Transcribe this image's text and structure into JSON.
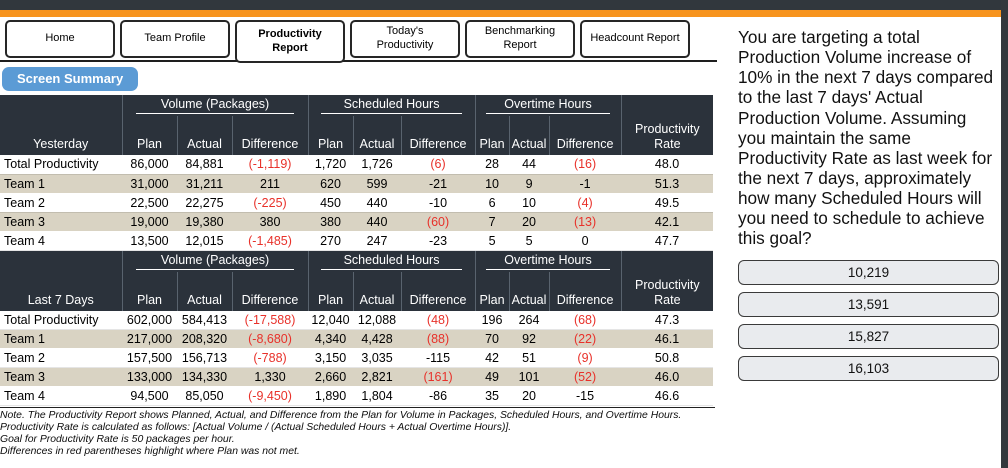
{
  "tabs": [
    {
      "label": "Home",
      "active": false
    },
    {
      "label": "Team Profile",
      "active": false
    },
    {
      "label": "Productivity Report",
      "active": true
    },
    {
      "label": "Today's Productivity",
      "active": false
    },
    {
      "label": "Benchmarking Report",
      "active": false
    },
    {
      "label": "Headcount Report",
      "active": false
    }
  ],
  "screen_summary_label": "Screen Summary",
  "tables": [
    {
      "period_label": "Yesterday",
      "groups": [
        "Volume (Packages)",
        "Scheduled Hours",
        "Overtime Hours"
      ],
      "sub_headers": [
        "Plan",
        "Actual",
        "Difference"
      ],
      "rate_header": "Productivity Rate",
      "rows": [
        {
          "label": "Total Productivity",
          "cells": [
            "86,000",
            "84,881",
            "(-1,119)",
            "1,720",
            "1,726",
            "(6)",
            "28",
            "44",
            "(16)",
            "48.0"
          ]
        },
        {
          "label": "Team 1",
          "cells": [
            "31,000",
            "31,211",
            "211",
            "620",
            "599",
            "-21",
            "10",
            "9",
            "-1",
            "51.3"
          ]
        },
        {
          "label": "Team 2",
          "cells": [
            "22,500",
            "22,275",
            "(-225)",
            "450",
            "440",
            "-10",
            "6",
            "10",
            "(4)",
            "49.5"
          ]
        },
        {
          "label": "Team 3",
          "cells": [
            "19,000",
            "19,380",
            "380",
            "380",
            "440",
            "(60)",
            "7",
            "20",
            "(13)",
            "42.1"
          ]
        },
        {
          "label": "Team 4",
          "cells": [
            "13,500",
            "12,015",
            "(-1,485)",
            "270",
            "247",
            "-23",
            "5",
            "5",
            "0",
            "47.7"
          ]
        }
      ]
    },
    {
      "period_label": "Last 7 Days",
      "groups": [
        "Volume (Packages)",
        "Scheduled Hours",
        "Overtime Hours"
      ],
      "sub_headers": [
        "Plan",
        "Actual",
        "Difference"
      ],
      "rate_header": "Productivity Rate",
      "rows": [
        {
          "label": "Total Productivity",
          "cells": [
            "602,000",
            "584,413",
            "(-17,588)",
            "12,040",
            "12,088",
            "(48)",
            "196",
            "264",
            "(68)",
            "47.3"
          ]
        },
        {
          "label": "Team 1",
          "cells": [
            "217,000",
            "208,320",
            "(-8,680)",
            "4,340",
            "4,428",
            "(88)",
            "70",
            "92",
            "(22)",
            "46.1"
          ]
        },
        {
          "label": "Team 2",
          "cells": [
            "157,500",
            "156,713",
            "(-788)",
            "3,150",
            "3,035",
            "-115",
            "42",
            "51",
            "(9)",
            "50.8"
          ]
        },
        {
          "label": "Team 3",
          "cells": [
            "133,000",
            "134,330",
            "1,330",
            "2,660",
            "2,821",
            "(161)",
            "49",
            "101",
            "(52)",
            "46.0"
          ]
        },
        {
          "label": "Team 4",
          "cells": [
            "94,500",
            "85,050",
            "(-9,450)",
            "1,890",
            "1,804",
            "-86",
            "35",
            "20",
            "-15",
            "46.6"
          ]
        }
      ]
    }
  ],
  "notes": [
    "Note. The Productivity Report shows Planned, Actual, and Difference from the Plan for Volume in Packages, Scheduled Hours, and Overtime Hours.",
    "Productivity Rate is calculated as follows: [Actual Volume / (Actual Scheduled Hours + Actual Overtime Hours)].",
    "Goal for Productivity Rate is 50 packages per hour.",
    "Differences in red parentheses highlight where Plan was not met."
  ],
  "question": {
    "text": "You are targeting a total Production Volume increase of 10% in the next 7 days compared to the last 7 days' Actual Production Volume. Assuming you maintain the same Productivity Rate as last week for the next 7 days, approximately how many Scheduled Hours will you need to schedule to achieve this goal?"
  },
  "answers": [
    "10,219",
    "13,591",
    "15,827",
    "16,103"
  ],
  "colors": {
    "accent_orange": "#f7941e",
    "header_dark": "#2b323b",
    "row_beige": "#d9d3c3",
    "negative_red": "#e8312a",
    "summary_blue": "#5b9bd5",
    "top_bar_dark": "#31373d"
  }
}
